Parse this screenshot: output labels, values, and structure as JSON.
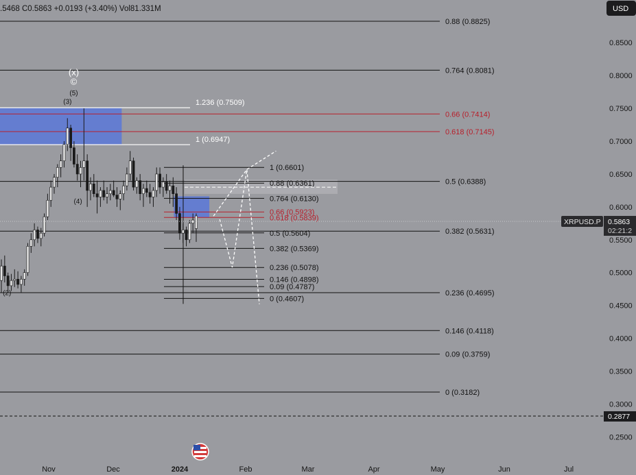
{
  "header": {
    "ohlc_text": ".5468  C0.5863  +0.0193 (+3.40%)  Vol81.331M",
    "currency_button": "USD"
  },
  "symbol_label": "XRPUSD.P",
  "price_tag": "0.5863",
  "countdown": "02:21:2",
  "low_tag": "0.2877",
  "colors": {
    "background": "#9a9ba0",
    "zone_blue": "#5a78d8",
    "fib_red": "#b81f2b",
    "line_black": "#111111",
    "line_white": "#f0f0f0",
    "candle": "#1a1a1a"
  },
  "chart_data": {
    "type": "candlestick",
    "symbol": "XRPUSD.P",
    "x_ticks": [
      "Nov",
      "Dec",
      "2024",
      "Feb",
      "Mar",
      "Apr",
      "May",
      "Jun",
      "Jul"
    ],
    "y_ticks": [
      "0.8500",
      "0.8000",
      "0.7500",
      "0.7000",
      "0.6500",
      "0.6000",
      "0.5500",
      "0.5000",
      "0.4500",
      "0.4000",
      "0.3500",
      "0.3000",
      "0.2500"
    ],
    "ylim": [
      0.24,
      0.9
    ],
    "last_close": 0.5863,
    "wave_labels": [
      {
        "text": "(x)",
        "at": "Nov 13",
        "price": 0.8
      },
      {
        "text": "©",
        "at": "Nov 13",
        "price": 0.786
      },
      {
        "text": "(5)",
        "at": "Nov 13",
        "price": 0.77
      },
      {
        "text": "(3)",
        "at": "Nov 10",
        "price": 0.757
      },
      {
        "text": "(4)",
        "at": "Nov 15",
        "price": 0.605
      },
      {
        "text": "(2)",
        "at": "Oct 12",
        "price": 0.466
      }
    ],
    "fib_large": [
      {
        "label": "0.88 (0.8825)",
        "value": 0.8825,
        "color": "black"
      },
      {
        "label": "0.764 (0.8081)",
        "value": 0.8081,
        "color": "black"
      },
      {
        "label": "0.66 (0.7414)",
        "value": 0.7414,
        "color": "red"
      },
      {
        "label": "0.618 (0.7145)",
        "value": 0.7145,
        "color": "red"
      },
      {
        "label": "0.5 (0.6388)",
        "value": 0.6388,
        "color": "black"
      },
      {
        "label": "0.382 (0.5631)",
        "value": 0.5631,
        "color": "black"
      },
      {
        "label": "0.236 (0.4695)",
        "value": 0.4695,
        "color": "black"
      },
      {
        "label": "0.146 (0.4118)",
        "value": 0.4118,
        "color": "black"
      },
      {
        "label": "0.09 (0.3759)",
        "value": 0.3759,
        "color": "black"
      },
      {
        "label": "0 (0.3182)",
        "value": 0.3182,
        "color": "black"
      }
    ],
    "fib_ext": [
      {
        "label": "1.236 (0.7509)",
        "value": 0.7509
      },
      {
        "label": "1 (0.6947)",
        "value": 0.6947
      }
    ],
    "fib_small": [
      {
        "label": "1 (0.6601)",
        "value": 0.6601,
        "color": "black"
      },
      {
        "label": "0.88 (0.6361)",
        "value": 0.6361,
        "color": "black"
      },
      {
        "label": "0.764 (0.6130)",
        "value": 0.613,
        "color": "black"
      },
      {
        "label": "0.66 (0.5923)",
        "value": 0.5923,
        "color": "red"
      },
      {
        "label": "0.618 (0.5839)",
        "value": 0.5839,
        "color": "red"
      },
      {
        "label": "0.5 (0.5604)",
        "value": 0.5604,
        "color": "black"
      },
      {
        "label": "0.382 (0.5369)",
        "value": 0.5369,
        "color": "black"
      },
      {
        "label": "0.236 (0.5078)",
        "value": 0.5078,
        "color": "black"
      },
      {
        "label": "0.146 (0.4898)",
        "value": 0.4898,
        "color": "black"
      },
      {
        "label": "0.09 (0.4787)",
        "value": 0.4787,
        "color": "black"
      },
      {
        "label": "0 (0.4607)",
        "value": 0.4607,
        "color": "black"
      }
    ],
    "zones": [
      {
        "name": "upper-blue-zone",
        "from": "Sep 20",
        "to": "Dec 6",
        "low": 0.6947,
        "high": 0.7509
      },
      {
        "name": "lower-blue-zone",
        "from": "Dec 31",
        "to": "Jan 17",
        "low": 0.5839,
        "high": 0.6161
      }
    ],
    "projection_paths": [
      [
        [
          "Jan 19",
          0.586
        ],
        [
          "Feb 4",
          0.657
        ],
        [
          "Feb 18",
          0.685
        ]
      ],
      [
        [
          "Jan 22",
          0.581
        ],
        [
          "Jan 28",
          0.508
        ],
        [
          "Feb 4",
          0.657
        ],
        [
          "Feb 10",
          0.452
        ]
      ]
    ],
    "series": [
      {
        "name": "XRPUSD.P",
        "candles": [
          [
            0.488,
            0.52,
            0.47,
            0.51
          ],
          [
            0.51,
            0.526,
            0.485,
            0.495
          ],
          [
            0.495,
            0.5,
            0.47,
            0.48
          ],
          [
            0.48,
            0.498,
            0.472,
            0.488
          ],
          [
            0.488,
            0.505,
            0.478,
            0.49
          ],
          [
            0.49,
            0.502,
            0.476,
            0.482
          ],
          [
            0.482,
            0.495,
            0.47,
            0.49
          ],
          [
            0.49,
            0.505,
            0.48,
            0.5
          ],
          [
            0.5,
            0.545,
            0.495,
            0.54
          ],
          [
            0.54,
            0.56,
            0.53,
            0.55
          ],
          [
            0.55,
            0.575,
            0.54,
            0.565
          ],
          [
            0.565,
            0.57,
            0.545,
            0.552
          ],
          [
            0.552,
            0.568,
            0.54,
            0.56
          ],
          [
            0.56,
            0.59,
            0.555,
            0.585
          ],
          [
            0.585,
            0.62,
            0.58,
            0.61
          ],
          [
            0.61,
            0.64,
            0.6,
            0.63
          ],
          [
            0.63,
            0.65,
            0.62,
            0.645
          ],
          [
            0.645,
            0.665,
            0.63,
            0.66
          ],
          [
            0.66,
            0.68,
            0.645,
            0.67
          ],
          [
            0.67,
            0.7,
            0.66,
            0.695
          ],
          [
            0.695,
            0.735,
            0.685,
            0.72
          ],
          [
            0.72,
            0.725,
            0.67,
            0.69
          ],
          [
            0.69,
            0.7,
            0.66,
            0.665
          ],
          [
            0.665,
            0.68,
            0.64,
            0.65
          ],
          [
            0.65,
            0.67,
            0.63,
            0.66
          ],
          [
            0.66,
            0.75,
            0.64,
            0.67
          ],
          [
            0.67,
            0.68,
            0.6,
            0.625
          ],
          [
            0.625,
            0.645,
            0.61,
            0.635
          ],
          [
            0.635,
            0.65,
            0.615,
            0.62
          ],
          [
            0.62,
            0.64,
            0.59,
            0.615
          ],
          [
            0.615,
            0.63,
            0.6,
            0.625
          ],
          [
            0.625,
            0.64,
            0.61,
            0.615
          ],
          [
            0.615,
            0.63,
            0.605,
            0.62
          ],
          [
            0.62,
            0.635,
            0.61,
            0.625
          ],
          [
            0.625,
            0.64,
            0.615,
            0.618
          ],
          [
            0.618,
            0.63,
            0.6,
            0.612
          ],
          [
            0.612,
            0.625,
            0.595,
            0.62
          ],
          [
            0.62,
            0.64,
            0.61,
            0.632
          ],
          [
            0.632,
            0.66,
            0.625,
            0.65
          ],
          [
            0.65,
            0.685,
            0.64,
            0.67
          ],
          [
            0.67,
            0.675,
            0.625,
            0.63
          ],
          [
            0.63,
            0.645,
            0.62,
            0.64
          ],
          [
            0.64,
            0.65,
            0.61,
            0.62
          ],
          [
            0.62,
            0.635,
            0.6,
            0.628
          ],
          [
            0.628,
            0.64,
            0.615,
            0.622
          ],
          [
            0.622,
            0.635,
            0.605,
            0.615
          ],
          [
            0.615,
            0.63,
            0.6,
            0.625
          ],
          [
            0.625,
            0.66,
            0.615,
            0.65
          ],
          [
            0.65,
            0.66,
            0.62,
            0.63
          ],
          [
            0.63,
            0.645,
            0.615,
            0.638
          ],
          [
            0.638,
            0.65,
            0.62,
            0.625
          ],
          [
            0.625,
            0.64,
            0.605,
            0.632
          ],
          [
            0.632,
            0.645,
            0.6,
            0.62
          ],
          [
            0.62,
            0.63,
            0.58,
            0.59
          ],
          [
            0.59,
            0.6,
            0.55,
            0.56
          ],
          [
            0.56,
            0.575,
            0.545,
            0.565
          ],
          [
            0.565,
            0.57,
            0.54,
            0.55
          ],
          [
            0.55,
            0.58,
            0.545,
            0.575
          ],
          [
            0.575,
            0.59,
            0.56,
            0.58
          ],
          [
            0.567,
            0.59,
            0.5468,
            0.5863
          ]
        ]
      }
    ]
  }
}
